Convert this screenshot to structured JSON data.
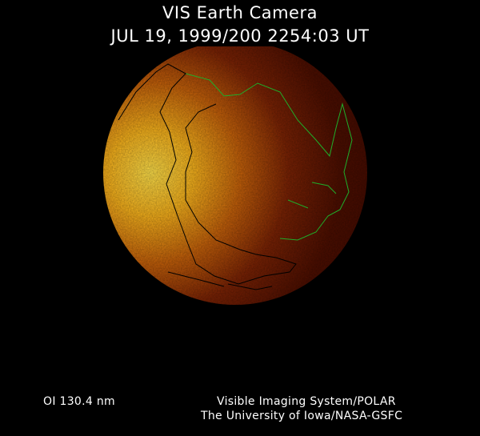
{
  "header": {
    "title": "VIS Earth Camera",
    "timestamp": "JUL 19, 1999/200 2254:03 UT"
  },
  "image": {
    "colors": {
      "bright": "#ffd23a",
      "mid": "#c65a08",
      "dark": "#4a0c00",
      "land_outline": "#000000",
      "coast_outline_dayside": "#1fae2a"
    }
  },
  "footer": {
    "band": "OI  130.4 nm",
    "credit_line1": "Visible Imaging System/POLAR",
    "credit_line2": "The University of Iowa/NASA-GSFC"
  }
}
